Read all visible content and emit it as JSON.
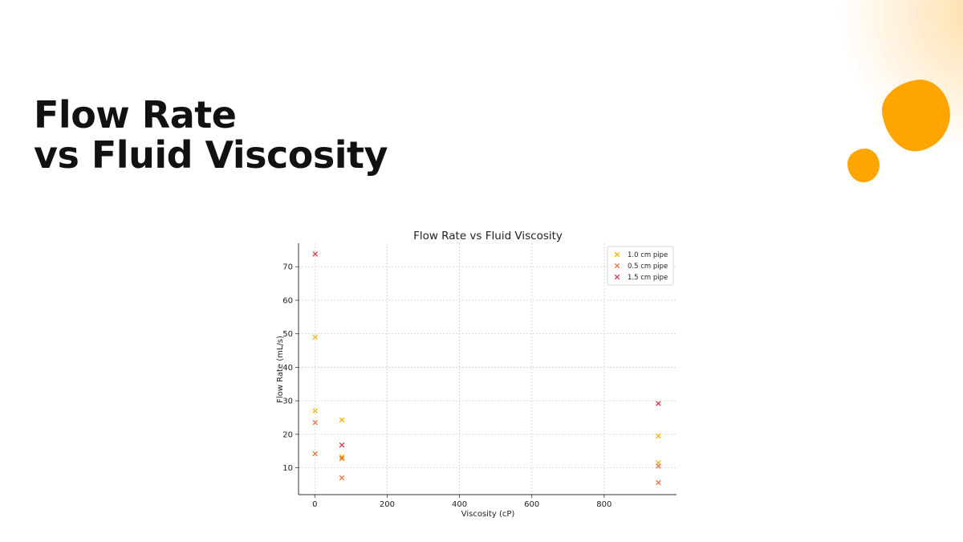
{
  "slide": {
    "title_line1": "Flow Rate",
    "title_line2": "vs Fluid Viscosity"
  },
  "chart_data": {
    "type": "scatter",
    "title": "Flow Rate vs Fluid Viscosity",
    "xlabel": "Viscosity (cP)",
    "ylabel": "Flow Rate (mL/s)",
    "xlim": [
      -45,
      1000
    ],
    "ylim": [
      2,
      77
    ],
    "xticks": [
      0,
      200,
      400,
      600,
      800
    ],
    "yticks": [
      10,
      20,
      30,
      40,
      50,
      60,
      70
    ],
    "grid": true,
    "legend_position": "top-right",
    "marker": "x",
    "series": [
      {
        "name": "1.0 cm pipe",
        "color": "#F4B400",
        "points": [
          [
            1,
            49
          ],
          [
            1,
            27
          ],
          [
            75,
            24.3
          ],
          [
            75,
            13.3
          ],
          [
            950,
            19.5
          ],
          [
            950,
            11.5
          ]
        ]
      },
      {
        "name": "0.5 cm pipe",
        "color": "#E8703A",
        "points": [
          [
            1,
            23.5
          ],
          [
            1,
            14.2
          ],
          [
            75,
            12.8
          ],
          [
            75,
            7.0
          ],
          [
            950,
            10.5
          ],
          [
            950,
            5.6
          ]
        ]
      },
      {
        "name": "1.5 cm pipe",
        "color": "#D2334A",
        "points": [
          [
            1,
            73.8
          ],
          [
            75,
            16.8
          ],
          [
            950,
            29.2
          ]
        ]
      }
    ]
  }
}
